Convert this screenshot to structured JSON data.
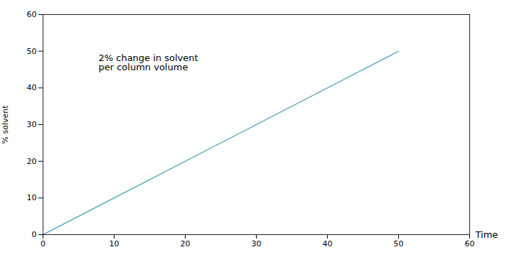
{
  "chart_data": {
    "type": "line",
    "x": [
      0,
      50
    ],
    "values": [
      0,
      50
    ],
    "color": "#5aabbf",
    "xlim": [
      0,
      60
    ],
    "ylim": [
      0,
      60
    ],
    "xticks": [
      0,
      10,
      20,
      30,
      40,
      50,
      60
    ],
    "yticks": [
      0,
      10,
      20,
      30,
      40,
      50,
      60
    ],
    "xlabel": "Time",
    "ylabel": "% solvent",
    "annotation": "2% change in solvent\nper column volume",
    "grid": false
  }
}
